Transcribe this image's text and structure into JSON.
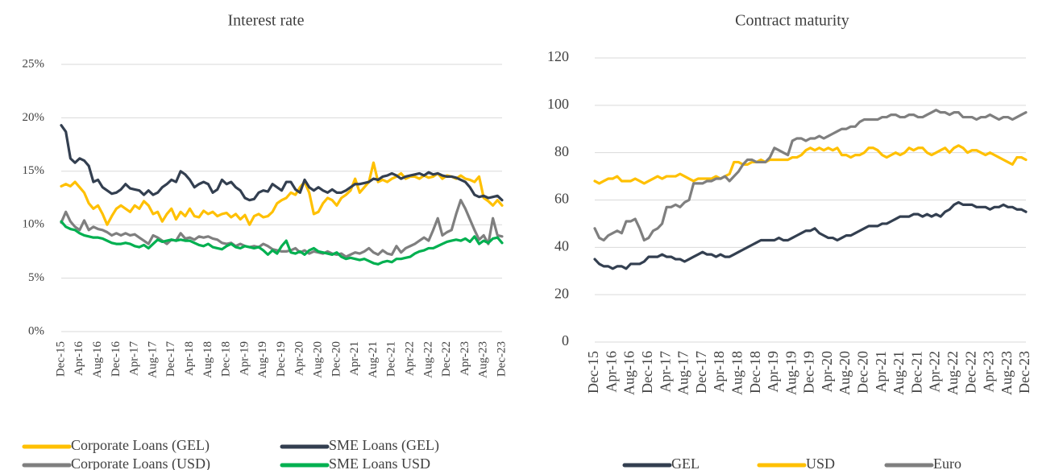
{
  "chart_data": [
    {
      "type": "line",
      "title": "Interest rate",
      "categories": [
        "Dec-15",
        null,
        null,
        null,
        "Apr-16",
        null,
        null,
        null,
        "Aug-16",
        null,
        null,
        null,
        "Dec-16",
        null,
        null,
        null,
        "Apr-17",
        null,
        null,
        null,
        "Aug-17",
        null,
        null,
        null,
        "Dec-17",
        null,
        null,
        null,
        "Apr-18",
        null,
        null,
        null,
        "Aug-18",
        null,
        null,
        null,
        "Dec-18",
        null,
        null,
        null,
        "Apr-19",
        null,
        null,
        null,
        "Aug-19",
        null,
        null,
        null,
        "Dec-19",
        null,
        null,
        null,
        "Apr-20",
        null,
        null,
        null,
        "Aug-20",
        null,
        null,
        null,
        "Dec-20",
        null,
        null,
        null,
        "Apr-21",
        null,
        null,
        null,
        "Aug-21",
        null,
        null,
        null,
        "Dec-21",
        null,
        null,
        null,
        "Apr-22",
        null,
        null,
        null,
        "Aug-22",
        null,
        null,
        null,
        "Dec-22",
        null,
        null,
        null,
        "Apr-23",
        null,
        null,
        null,
        "Aug-23",
        null,
        null,
        null,
        "Dec-23"
      ],
      "ylim": [
        0,
        25
      ],
      "yticks": [
        {
          "value": 0,
          "label": "0%"
        },
        {
          "value": 5,
          "label": "5%"
        },
        {
          "value": 10,
          "label": "10%"
        },
        {
          "value": 15,
          "label": "15%"
        },
        {
          "value": 20,
          "label": "20%"
        },
        {
          "value": 25,
          "label": "25%"
        }
      ],
      "grid": true,
      "series": [
        {
          "name": "Corporate Loans (GEL)",
          "color": "#ffc000",
          "values": [
            13.6,
            13.8,
            13.6,
            14.0,
            13.5,
            13.0,
            12.0,
            11.5,
            11.8,
            11.0,
            10.0,
            10.8,
            11.5,
            11.8,
            11.5,
            11.2,
            11.8,
            11.5,
            12.2,
            11.8,
            11.0,
            11.2,
            10.3,
            11.0,
            11.5,
            10.5,
            11.2,
            10.8,
            11.5,
            10.8,
            10.7,
            11.3,
            11.0,
            11.2,
            10.8,
            11.0,
            11.1,
            10.7,
            11.0,
            10.5,
            10.9,
            10.0,
            10.8,
            11.0,
            10.7,
            10.8,
            11.2,
            12.0,
            12.3,
            12.5,
            13.0,
            12.8,
            13.5,
            14.0,
            13.0,
            11.0,
            11.2,
            12.0,
            12.5,
            12.3,
            11.8,
            12.5,
            12.8,
            13.2,
            14.3,
            13.0,
            13.5,
            14.0,
            15.8,
            14.0,
            14.2,
            14.0,
            14.3,
            14.5,
            14.8,
            14.3,
            14.5,
            14.5,
            14.3,
            14.6,
            14.4,
            14.5,
            14.8,
            14.3,
            14.6,
            14.5,
            14.3,
            14.6,
            14.3,
            14.2,
            14.0,
            14.5,
            12.5,
            12.2,
            11.8,
            12.3,
            11.8
          ]
        },
        {
          "name": "SME Loans (GEL)",
          "color": "#333f50",
          "values": [
            19.3,
            18.7,
            16.2,
            15.8,
            16.2,
            16.0,
            15.5,
            14.0,
            14.2,
            13.5,
            13.2,
            12.9,
            13.0,
            13.3,
            13.8,
            13.4,
            13.3,
            13.2,
            12.8,
            13.2,
            12.8,
            13.0,
            13.5,
            13.8,
            14.2,
            14.0,
            15.0,
            14.7,
            14.2,
            13.5,
            13.8,
            14.0,
            13.8,
            13.0,
            13.3,
            14.2,
            13.8,
            14.0,
            13.5,
            13.2,
            12.5,
            12.3,
            12.4,
            13.0,
            13.2,
            13.1,
            13.8,
            13.5,
            13.2,
            14.0,
            14.0,
            13.3,
            13.0,
            14.2,
            13.5,
            13.2,
            13.5,
            13.2,
            13.0,
            13.3,
            13.0,
            13.0,
            13.2,
            13.5,
            13.8,
            13.8,
            13.9,
            14.0,
            14.3,
            14.2,
            14.5,
            14.6,
            14.8,
            14.6,
            14.3,
            14.5,
            14.6,
            14.7,
            14.8,
            14.6,
            14.9,
            14.7,
            14.8,
            14.6,
            14.5,
            14.5,
            14.4,
            14.2,
            14.0,
            13.5,
            12.8,
            12.6,
            12.7,
            12.5,
            12.6,
            12.7,
            12.3
          ]
        },
        {
          "name": "Corporate Loans (USD)",
          "color": "#7f7f7f",
          "values": [
            10.2,
            11.2,
            10.3,
            9.8,
            9.5,
            10.4,
            9.5,
            9.8,
            9.6,
            9.5,
            9.3,
            9.0,
            9.2,
            9.0,
            9.2,
            9.0,
            9.1,
            8.8,
            8.5,
            8.2,
            9.0,
            8.8,
            8.5,
            8.2,
            8.6,
            8.5,
            9.2,
            8.7,
            8.8,
            8.6,
            8.9,
            8.8,
            8.9,
            8.7,
            8.6,
            8.3,
            8.2,
            8.3,
            8.0,
            8.2,
            8.0,
            7.9,
            8.0,
            7.9,
            8.2,
            8.0,
            7.7,
            7.6,
            7.5,
            7.5,
            7.6,
            7.8,
            7.4,
            7.6,
            7.3,
            7.5,
            7.4,
            7.3,
            7.5,
            7.3,
            7.2,
            7.3,
            7.0,
            7.2,
            7.4,
            7.3,
            7.5,
            7.8,
            7.4,
            7.2,
            7.6,
            7.3,
            7.2,
            8.0,
            7.4,
            7.8,
            8.0,
            8.2,
            8.5,
            8.8,
            8.5,
            9.5,
            10.6,
            9.0,
            9.3,
            9.5,
            11.0,
            12.3,
            11.5,
            10.5,
            9.5,
            8.6,
            9.0,
            8.2,
            10.6,
            9.0,
            8.9
          ]
        },
        {
          "name": "SME Loans USD",
          "color": "#00b050",
          "values": [
            10.3,
            9.8,
            9.6,
            9.5,
            9.2,
            9.0,
            8.9,
            8.8,
            8.8,
            8.7,
            8.5,
            8.3,
            8.2,
            8.2,
            8.3,
            8.2,
            8.0,
            7.9,
            8.1,
            7.8,
            8.2,
            8.6,
            8.4,
            8.5,
            8.6,
            8.5,
            8.6,
            8.5,
            8.5,
            8.3,
            8.1,
            8.0,
            8.2,
            7.9,
            7.8,
            7.7,
            8.0,
            8.2,
            7.9,
            7.8,
            8.0,
            7.9,
            7.8,
            7.9,
            7.6,
            7.2,
            7.6,
            7.3,
            8.0,
            8.5,
            7.4,
            7.3,
            7.5,
            7.2,
            7.6,
            7.8,
            7.5,
            7.4,
            7.3,
            7.2,
            7.4,
            7.0,
            6.8,
            6.9,
            6.8,
            6.7,
            6.8,
            6.6,
            6.4,
            6.3,
            6.5,
            6.6,
            6.5,
            6.8,
            6.8,
            6.9,
            7.0,
            7.3,
            7.5,
            7.6,
            7.8,
            7.8,
            8.0,
            8.2,
            8.4,
            8.5,
            8.6,
            8.5,
            8.7,
            8.4,
            8.9,
            8.2,
            8.5,
            8.3,
            8.7,
            8.8,
            8.3
          ]
        }
      ]
    },
    {
      "type": "line",
      "title": "Contract maturity",
      "categories": [
        "Dec-15",
        null,
        null,
        null,
        "Apr-16",
        null,
        null,
        null,
        "Aug-16",
        null,
        null,
        null,
        "Dec-16",
        null,
        null,
        null,
        "Apr-17",
        null,
        null,
        null,
        "Aug-17",
        null,
        null,
        null,
        "Dec-17",
        null,
        null,
        null,
        "Apr-18",
        null,
        null,
        null,
        "Aug-18",
        null,
        null,
        null,
        "Dec-18",
        null,
        null,
        null,
        "Apr-19",
        null,
        null,
        null,
        "Aug-19",
        null,
        null,
        null,
        "Dec-19",
        null,
        null,
        null,
        "Apr-20",
        null,
        null,
        null,
        "Aug-20",
        null,
        null,
        null,
        "Dec-20",
        null,
        null,
        null,
        "Apr-21",
        null,
        null,
        null,
        "Aug-21",
        null,
        null,
        null,
        "Dec-21",
        null,
        null,
        null,
        "Apr-22",
        null,
        null,
        null,
        "Aug-22",
        null,
        null,
        null,
        "Dec-22",
        null,
        null,
        null,
        "Apr-23",
        null,
        null,
        null,
        "Aug-23",
        null,
        null,
        null,
        "Dec-23"
      ],
      "ylim": [
        0,
        120
      ],
      "yticks": [
        0,
        20,
        40,
        60,
        80,
        100,
        120
      ],
      "grid": true,
      "series": [
        {
          "name": "GEL",
          "color": "#333f50",
          "values": [
            35,
            33,
            32,
            32,
            31,
            32,
            32,
            31,
            33,
            33,
            33,
            34,
            36,
            36,
            36,
            37,
            36,
            36,
            35,
            35,
            34,
            35,
            36,
            37,
            38,
            37,
            37,
            36,
            37,
            36,
            36,
            37,
            38,
            39,
            40,
            41,
            42,
            43,
            43,
            43,
            43,
            44,
            43,
            43,
            44,
            45,
            46,
            47,
            47,
            48,
            46,
            45,
            44,
            44,
            43,
            44,
            45,
            45,
            46,
            47,
            48,
            49,
            49,
            49,
            50,
            50,
            51,
            52,
            53,
            53,
            53,
            54,
            54,
            53,
            54,
            53,
            54,
            53,
            55,
            56,
            58,
            59,
            58,
            58,
            58,
            57,
            57,
            57,
            56,
            57,
            57,
            58,
            57,
            57,
            56,
            56,
            55
          ]
        },
        {
          "name": "USD",
          "color": "#ffc000",
          "values": [
            68,
            67,
            68,
            69,
            69,
            70,
            68,
            68,
            68,
            69,
            68,
            67,
            68,
            69,
            70,
            69,
            70,
            70,
            70,
            71,
            70,
            69,
            68,
            69,
            69,
            69,
            69,
            70,
            69,
            70,
            71,
            76,
            76,
            75,
            75,
            76,
            76,
            77,
            76,
            77,
            77,
            77,
            77,
            77,
            78,
            78,
            79,
            81,
            82,
            81,
            82,
            81,
            82,
            81,
            82,
            79,
            79,
            78,
            79,
            79,
            80,
            82,
            82,
            81,
            79,
            78,
            79,
            80,
            79,
            80,
            82,
            81,
            82,
            82,
            80,
            79,
            80,
            81,
            82,
            80,
            82,
            83,
            82,
            80,
            81,
            81,
            80,
            79,
            80,
            79,
            78,
            77,
            76,
            75,
            78,
            78,
            77
          ]
        },
        {
          "name": "Euro",
          "color": "#7f7f7f",
          "values": [
            48,
            44,
            43,
            45,
            46,
            47,
            46,
            51,
            51,
            52,
            48,
            43,
            44,
            47,
            48,
            50,
            57,
            57,
            58,
            57,
            59,
            60,
            67,
            67,
            67,
            68,
            68,
            69,
            69,
            70,
            68,
            70,
            72,
            75,
            77,
            77,
            76,
            76,
            76,
            78,
            82,
            81,
            80,
            79,
            85,
            86,
            86,
            85,
            86,
            86,
            87,
            86,
            87,
            88,
            89,
            90,
            90,
            91,
            91,
            93,
            94,
            94,
            94,
            94,
            95,
            95,
            96,
            96,
            95,
            95,
            96,
            96,
            95,
            95,
            96,
            97,
            98,
            97,
            97,
            96,
            97,
            97,
            95,
            95,
            95,
            94,
            95,
            95,
            96,
            95,
            94,
            95,
            95,
            94,
            95,
            96,
            97
          ]
        }
      ]
    }
  ]
}
